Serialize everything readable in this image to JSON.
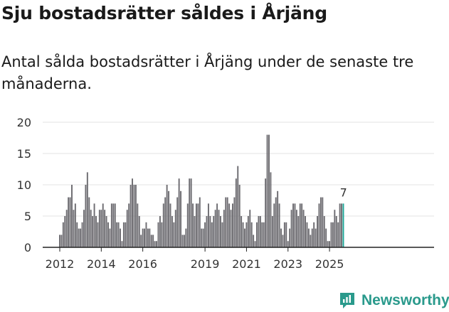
{
  "header": {
    "title": "Sju bostadsrätter såldes i Årjäng",
    "subtitle": "Antal sålda bostadsrätter i Årjäng under de senaste tre månaderna."
  },
  "brand": {
    "name": "Newsworthy",
    "icon": "newsworthy-logo-icon"
  },
  "colors": {
    "bar": "#6d6c71",
    "highlight": "#1aa596",
    "grid": "#e3e3e3",
    "axis": "#222222"
  },
  "chart_data": {
    "type": "bar",
    "title": "Sju bostadsrätter såldes i Årjäng",
    "subtitle": "Antal sålda bostadsrätter i Årjäng under de senaste tre månaderna.",
    "xlabel": "",
    "ylabel": "",
    "ylim": [
      0,
      20
    ],
    "yticks": [
      0,
      5,
      10,
      15,
      20
    ],
    "grid": true,
    "legend": "none",
    "first_month": "2012-01",
    "last_month": "2025-09",
    "xtick_labels": [
      "2012",
      "2014",
      "2016",
      "2019",
      "2021",
      "2023",
      "2025"
    ],
    "xtick_months": [
      "2012-01",
      "2014-01",
      "2016-01",
      "2019-01",
      "2021-01",
      "2023-01",
      "2025-01"
    ],
    "highlight": {
      "month": "2025-09",
      "value": 7,
      "label": "7"
    },
    "values": [
      2,
      2,
      4,
      5,
      6,
      8,
      8,
      10,
      6,
      7,
      4,
      3,
      3,
      4,
      6,
      10,
      12,
      8,
      6,
      5,
      7,
      5,
      4,
      6,
      6,
      7,
      6,
      5,
      4,
      3,
      7,
      7,
      7,
      4,
      4,
      3,
      1,
      4,
      4,
      6,
      7,
      10,
      11,
      10,
      10,
      7,
      5,
      2,
      3,
      3,
      4,
      3,
      3,
      2,
      2,
      1,
      1,
      4,
      5,
      4,
      7,
      8,
      10,
      9,
      7,
      5,
      4,
      6,
      8,
      11,
      9,
      2,
      2,
      3,
      7,
      11,
      11,
      7,
      5,
      7,
      7,
      8,
      3,
      3,
      4,
      5,
      7,
      5,
      4,
      5,
      6,
      7,
      6,
      5,
      4,
      6,
      8,
      8,
      7,
      6,
      7,
      8,
      11,
      13,
      10,
      5,
      4,
      3,
      4,
      5,
      6,
      4,
      2,
      1,
      4,
      5,
      5,
      4,
      4,
      11,
      18,
      18,
      12,
      5,
      7,
      8,
      9,
      7,
      3,
      2,
      4,
      4,
      1,
      3,
      6,
      7,
      7,
      6,
      5,
      7,
      7,
      6,
      5,
      4,
      3,
      2,
      3,
      4,
      3,
      5,
      7,
      8,
      8,
      5,
      3,
      1,
      1,
      4,
      4,
      6,
      5,
      4,
      7,
      7,
      7
    ]
  }
}
